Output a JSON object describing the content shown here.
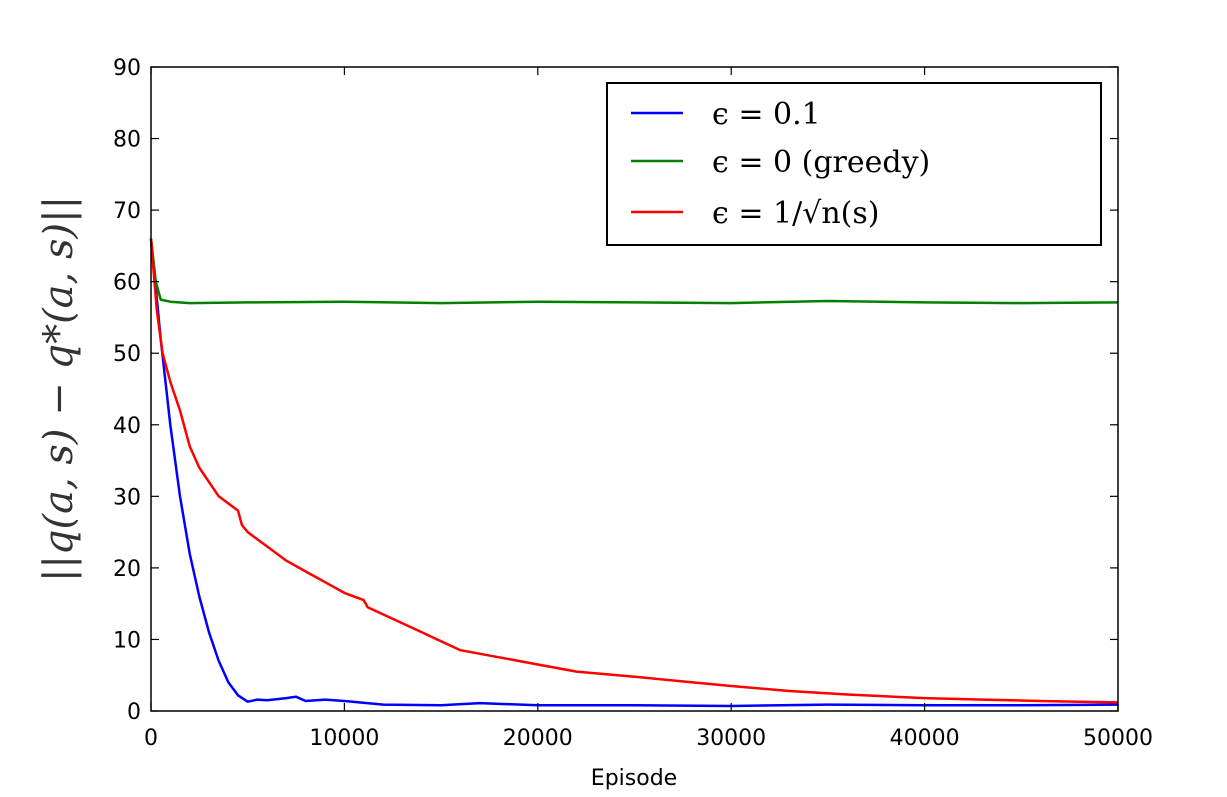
{
  "chart_data": {
    "type": "line",
    "title": "",
    "xlabel": "Episode",
    "ylabel": "||q(a, s) − q*(a, s)||",
    "xlim": [
      0,
      50000
    ],
    "ylim": [
      0,
      90
    ],
    "xticks": [
      0,
      10000,
      20000,
      30000,
      40000,
      50000
    ],
    "yticks": [
      0,
      10,
      20,
      30,
      40,
      50,
      60,
      70,
      80,
      90
    ],
    "legend_position": "top-right",
    "series": [
      {
        "name": "ϵ = 0.1",
        "color": "#0000ff",
        "x": [
          0,
          500,
          1000,
          1500,
          2000,
          2500,
          3000,
          3500,
          4000,
          4500,
          5000,
          5500,
          6000,
          7000,
          7500,
          8000,
          9000,
          10000,
          12000,
          15000,
          17000,
          20000,
          25000,
          30000,
          35000,
          40000,
          45000,
          50000
        ],
        "y": [
          66,
          52,
          40,
          30,
          22,
          16,
          11,
          7,
          4,
          2.2,
          1.3,
          1.6,
          1.5,
          1.8,
          2.0,
          1.4,
          1.6,
          1.4,
          0.9,
          0.8,
          1.1,
          0.8,
          0.8,
          0.7,
          0.9,
          0.8,
          0.8,
          0.9
        ]
      },
      {
        "name": "ϵ = 0 (greedy)",
        "color": "#008000",
        "x": [
          0,
          250,
          500,
          1000,
          2000,
          5000,
          10000,
          15000,
          20000,
          25000,
          30000,
          35000,
          40000,
          45000,
          50000
        ],
        "y": [
          66,
          60,
          57.5,
          57.2,
          57.0,
          57.1,
          57.2,
          57.0,
          57.2,
          57.1,
          57.0,
          57.3,
          57.1,
          57.0,
          57.1
        ]
      },
      {
        "name": "ϵ = 1/√n(s)",
        "color": "#ff0000",
        "x": [
          0,
          300,
          600,
          1000,
          1500,
          2000,
          2500,
          3000,
          3500,
          4000,
          4500,
          4700,
          5000,
          6000,
          7000,
          8000,
          9000,
          10000,
          11000,
          11200,
          12000,
          14000,
          16000,
          18000,
          20000,
          22000,
          25000,
          28000,
          30000,
          33000,
          36000,
          40000,
          43000,
          46000,
          48000,
          50000
        ],
        "y": [
          66,
          56,
          50,
          46,
          42,
          37,
          34,
          32,
          30,
          29,
          28,
          26,
          25,
          23,
          21,
          19.5,
          18,
          16.5,
          15.5,
          14.5,
          13.5,
          11,
          8.5,
          7.5,
          6.5,
          5.5,
          4.8,
          4.0,
          3.5,
          2.8,
          2.3,
          1.8,
          1.6,
          1.4,
          1.3,
          1.2
        ]
      }
    ]
  }
}
